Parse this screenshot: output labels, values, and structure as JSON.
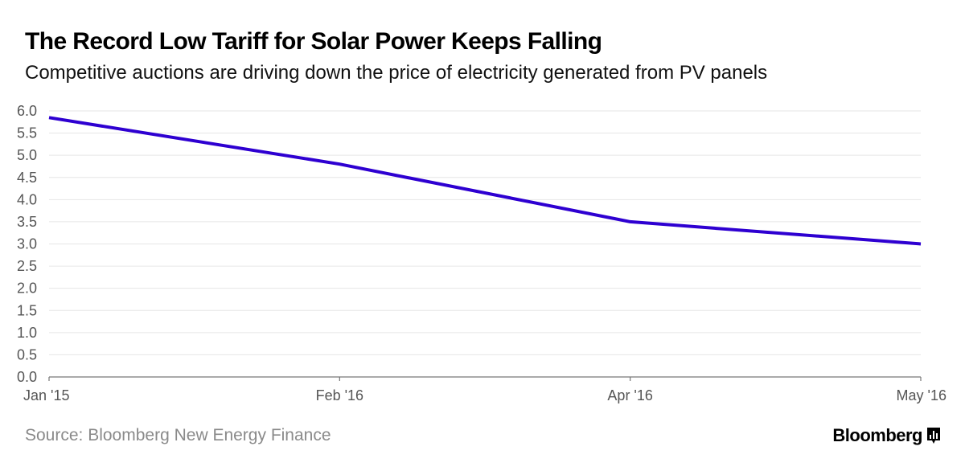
{
  "title": "The Record Low Tariff for Solar Power Keeps Falling",
  "subtitle": "Competitive auctions are driving down the price of electricity generated from PV panels",
  "source": "Source: Bloomberg New Energy Finance",
  "brand": "Bloomberg",
  "colors": {
    "line": "#2e00d1",
    "grid": "#e6e6e6",
    "axis": "#777777",
    "tick_text": "#555555"
  },
  "chart_data": {
    "type": "line",
    "x": [
      "Jan '15",
      "Feb '16",
      "Apr '16",
      "May '16"
    ],
    "series": [
      {
        "values": [
          5.85,
          4.8,
          3.5,
          3.0
        ]
      }
    ],
    "ylim": [
      0,
      6
    ],
    "yticks": [
      "0.0",
      "0.5",
      "1.0",
      "1.5",
      "2.0",
      "2.5",
      "3.0",
      "3.5",
      "4.0",
      "4.5",
      "5.0",
      "5.5",
      "6.0"
    ],
    "grid": true,
    "title": "The Record Low Tariff for Solar Power Keeps Falling",
    "xlabel": "",
    "ylabel": ""
  }
}
